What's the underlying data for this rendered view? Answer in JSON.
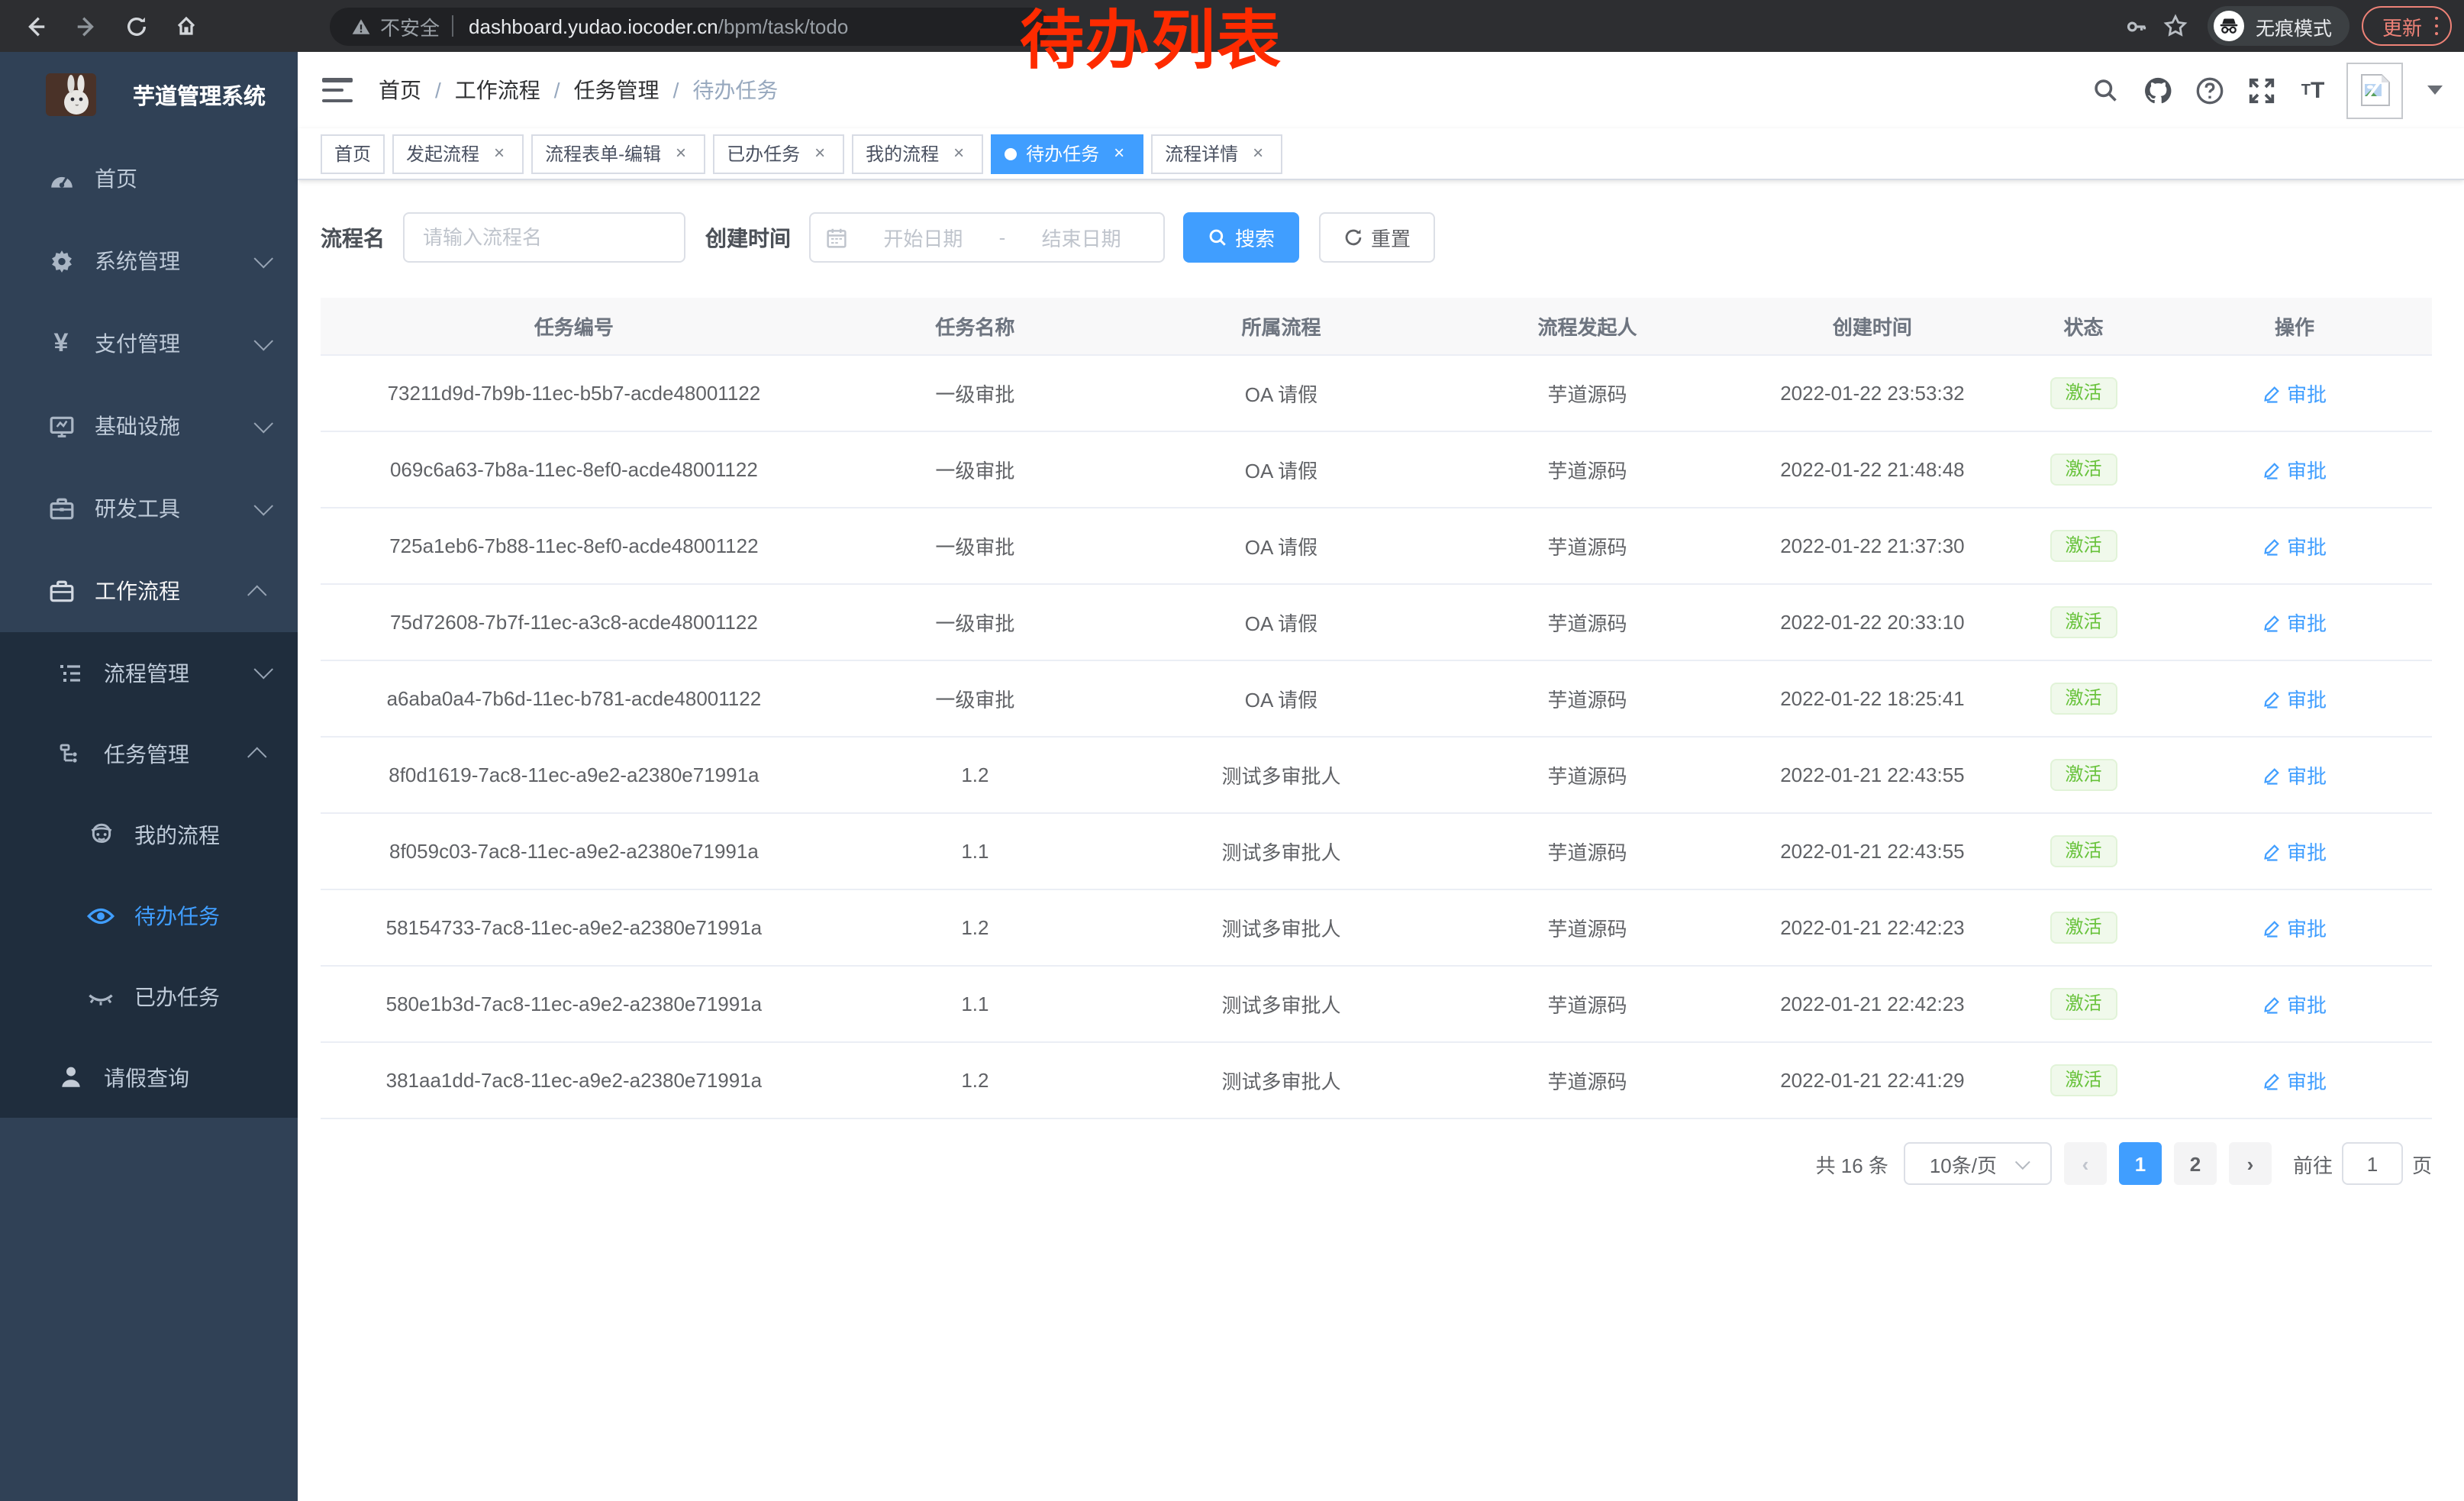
{
  "browser": {
    "security_label": "不安全",
    "url_host": "dashboard.yudao.iocoder.cn",
    "url_path": "/bpm/task/todo",
    "incognito_label": "无痕模式",
    "update_label": "更新"
  },
  "annotation": "待办列表",
  "colors": {
    "accent": "#409eff",
    "success": "#67c23a",
    "annotation_red": "#fe2b00",
    "sidebar_bg": "#304156",
    "submenu_bg": "#1f2d3d"
  },
  "sidebar": {
    "title": "芋道管理系统",
    "items": {
      "home": "首页",
      "system": "系统管理",
      "payment": "支付管理",
      "infra": "基础设施",
      "devtools": "研发工具",
      "workflow": "工作流程",
      "process_mgmt": "流程管理",
      "task_mgmt": "任务管理",
      "my_process": "我的流程",
      "todo_task": "待办任务",
      "done_task": "已办任务",
      "leave_query": "请假查询"
    }
  },
  "breadcrumb": [
    "首页",
    "工作流程",
    "任务管理",
    "待办任务"
  ],
  "tabs": [
    {
      "label": "首页",
      "closable": false,
      "active": false
    },
    {
      "label": "发起流程",
      "closable": true,
      "active": false
    },
    {
      "label": "流程表单-编辑",
      "closable": true,
      "active": false
    },
    {
      "label": "已办任务",
      "closable": true,
      "active": false
    },
    {
      "label": "我的流程",
      "closable": true,
      "active": false
    },
    {
      "label": "待办任务",
      "closable": true,
      "active": true
    },
    {
      "label": "流程详情",
      "closable": true,
      "active": false
    }
  ],
  "filters": {
    "name_label": "流程名",
    "name_placeholder": "请输入流程名",
    "date_label": "创建时间",
    "date_start_placeholder": "开始日期",
    "date_separator": "-",
    "date_end_placeholder": "结束日期",
    "search_label": "搜索",
    "reset_label": "重置"
  },
  "table": {
    "columns": [
      "任务编号",
      "任务名称",
      "所属流程",
      "流程发起人",
      "创建时间",
      "状态",
      "操作"
    ],
    "rows": [
      {
        "id": "73211d9d-7b9b-11ec-b5b7-acde48001122",
        "name": "一级审批",
        "process": "OA 请假",
        "starter": "芋道源码",
        "created": "2022-01-22 23:53:32",
        "status": "激活",
        "action": "审批"
      },
      {
        "id": "069c6a63-7b8a-11ec-8ef0-acde48001122",
        "name": "一级审批",
        "process": "OA 请假",
        "starter": "芋道源码",
        "created": "2022-01-22 21:48:48",
        "status": "激活",
        "action": "审批"
      },
      {
        "id": "725a1eb6-7b88-11ec-8ef0-acde48001122",
        "name": "一级审批",
        "process": "OA 请假",
        "starter": "芋道源码",
        "created": "2022-01-22 21:37:30",
        "status": "激活",
        "action": "审批"
      },
      {
        "id": "75d72608-7b7f-11ec-a3c8-acde48001122",
        "name": "一级审批",
        "process": "OA 请假",
        "starter": "芋道源码",
        "created": "2022-01-22 20:33:10",
        "status": "激活",
        "action": "审批"
      },
      {
        "id": "a6aba0a4-7b6d-11ec-b781-acde48001122",
        "name": "一级审批",
        "process": "OA 请假",
        "starter": "芋道源码",
        "created": "2022-01-22 18:25:41",
        "status": "激活",
        "action": "审批"
      },
      {
        "id": "8f0d1619-7ac8-11ec-a9e2-a2380e71991a",
        "name": "1.2",
        "process": "测试多审批人",
        "starter": "芋道源码",
        "created": "2022-01-21 22:43:55",
        "status": "激活",
        "action": "审批"
      },
      {
        "id": "8f059c03-7ac8-11ec-a9e2-a2380e71991a",
        "name": "1.1",
        "process": "测试多审批人",
        "starter": "芋道源码",
        "created": "2022-01-21 22:43:55",
        "status": "激活",
        "action": "审批"
      },
      {
        "id": "58154733-7ac8-11ec-a9e2-a2380e71991a",
        "name": "1.2",
        "process": "测试多审批人",
        "starter": "芋道源码",
        "created": "2022-01-21 22:42:23",
        "status": "激活",
        "action": "审批"
      },
      {
        "id": "580e1b3d-7ac8-11ec-a9e2-a2380e71991a",
        "name": "1.1",
        "process": "测试多审批人",
        "starter": "芋道源码",
        "created": "2022-01-21 22:42:23",
        "status": "激活",
        "action": "审批"
      },
      {
        "id": "381aa1dd-7ac8-11ec-a9e2-a2380e71991a",
        "name": "1.2",
        "process": "测试多审批人",
        "starter": "芋道源码",
        "created": "2022-01-21 22:41:29",
        "status": "激活",
        "action": "审批"
      }
    ]
  },
  "pagination": {
    "total_label": "共 16 条",
    "page_size_label": "10条/页",
    "pages": [
      "1",
      "2"
    ],
    "current_page": "1",
    "goto_label": "前往",
    "goto_value": "1",
    "page_unit_label": "页"
  }
}
